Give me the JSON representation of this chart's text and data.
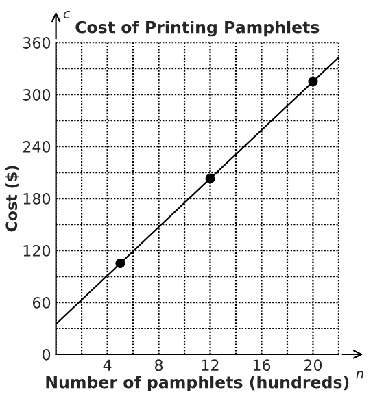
{
  "chart_data": {
    "type": "scatter",
    "title": "Cost of Printing Pamphlets",
    "xlabel": "Number of pamphlets (hundreds)",
    "ylabel": "Cost ($)",
    "annotations": [
      "n",
      "c"
    ],
    "series": [
      {
        "color": "#000000",
        "marker": "circle",
        "x": [
          5,
          12,
          20
        ],
        "values": [
          105,
          203,
          315
        ]
      },
      {
        "type": "line",
        "color": "#000000",
        "x": [
          0,
          22
        ],
        "values": [
          35,
          343
        ]
      }
    ],
    "xlim": [
      0,
      22
    ],
    "ylim": [
      0,
      360
    ],
    "xticks": [
      {
        "value": 0,
        "label": null
      },
      {
        "value": 2,
        "label": null
      },
      4,
      {
        "value": 6,
        "label": null
      },
      8,
      {
        "value": 10,
        "label": null
      },
      12,
      {
        "value": 14,
        "label": null
      },
      16,
      {
        "value": 18,
        "label": null
      },
      20,
      {
        "value": 22,
        "label": null
      }
    ],
    "yticks": [
      0,
      {
        "value": 30,
        "label": null
      },
      60,
      {
        "value": 90,
        "label": null
      },
      120,
      {
        "value": 150,
        "label": null
      },
      180,
      {
        "value": 210,
        "label": null
      },
      240,
      {
        "value": 270,
        "label": null
      },
      300,
      {
        "value": 330,
        "label": null
      },
      360
    ],
    "grid": true,
    "legend": false
  }
}
